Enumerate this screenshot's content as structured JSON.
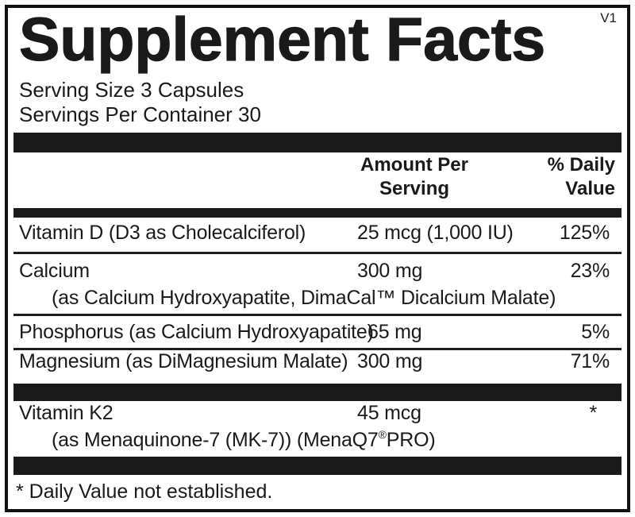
{
  "version_tag": "V1",
  "title": "Supplement Facts",
  "serving": {
    "size": "Serving Size 3 Capsules",
    "per_container": "Servings Per Container 30"
  },
  "columns": {
    "amount_line1": "Amount Per",
    "amount_line2": "Serving",
    "dv_line1": "% Daily",
    "dv_line2": "Value"
  },
  "rows": [
    {
      "name": "Vitamin D (D3 as Cholecalciferol)",
      "amount": "25 mcg (1,000 IU)",
      "dv": "125%"
    },
    {
      "name": "Calcium",
      "amount": "300 mg",
      "dv": "23%",
      "sub": "(as Calcium Hydroxyapatite, DimaCal™ Dicalcium Malate)"
    },
    {
      "name": "Phosphorus (as Calcium Hydroxyapatite)",
      "amount": "65 mg",
      "dv": "5%"
    },
    {
      "name": "Magnesium (as DiMagnesium Malate)",
      "amount": "300 mg",
      "dv": "71%"
    },
    {
      "name": "Vitamin K2",
      "amount": "45 mcg",
      "dv": "*",
      "sub_prefix": "(as Menaquinone-7 (MK-7)) (MenaQ7",
      "sub_reg": "®",
      "sub_suffix": "PRO)"
    }
  ],
  "footnote": "* Daily Value not established.",
  "colors": {
    "ink": "#1a1a1a",
    "background": "#ffffff",
    "border": "#111111"
  }
}
